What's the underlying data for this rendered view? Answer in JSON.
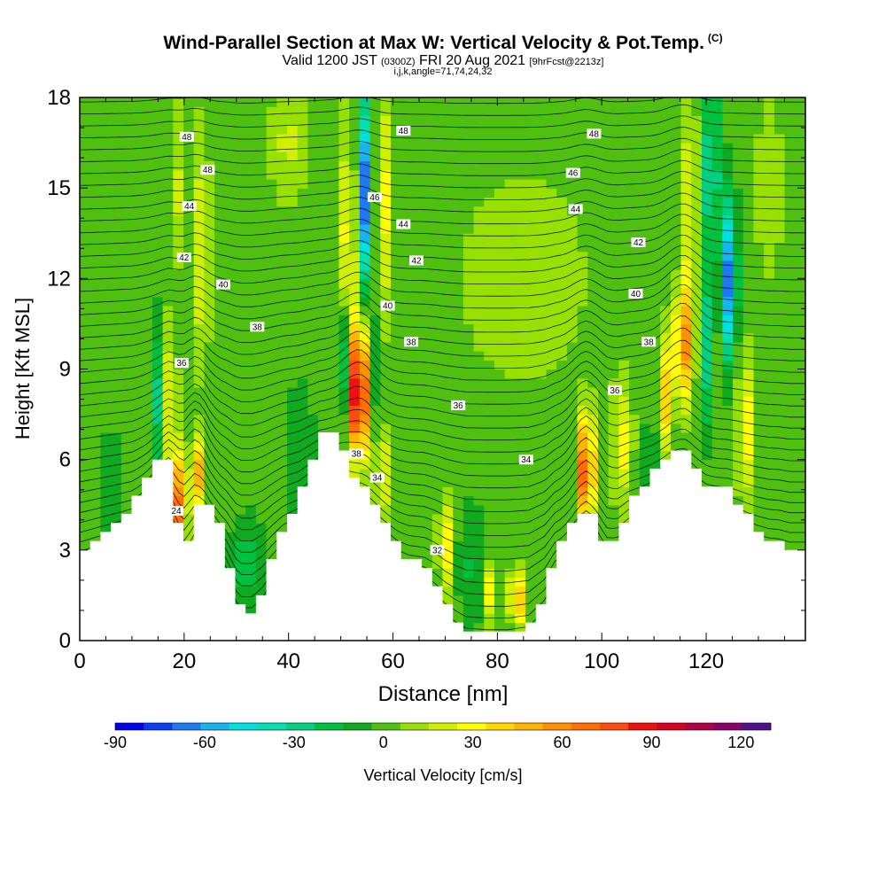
{
  "header": {
    "title_main": "Wind-Parallel Section at Max W: Vertical Velocity & Pot.Temp.",
    "title_copyright": "(C)",
    "valid_prefix": "Valid 1200 JST",
    "valid_z": "(0300Z)",
    "valid_date": "FRI 20 Aug 2021",
    "forecast_tag": "[9hrFcst@2213z]",
    "indices": "i,j,k,angle=71,74,24,32"
  },
  "chart_data": {
    "type": "heatmap",
    "xlabel": "Distance [nm]",
    "ylabel": "Height [Kft MSL]",
    "xlim": [
      0,
      139
    ],
    "ylim": [
      0,
      18
    ],
    "xticks": [
      0,
      20,
      40,
      60,
      80,
      100,
      120
    ],
    "yticks": [
      0,
      3,
      6,
      9,
      12,
      15,
      18
    ],
    "colorbar": {
      "label": "Vertical Velocity [cm/s]",
      "ticks": [
        -90,
        -60,
        -30,
        0,
        30,
        60,
        90,
        120
      ],
      "levels": [
        -90,
        -80,
        -70,
        -60,
        -50,
        -40,
        -30,
        -20,
        -10,
        0,
        10,
        20,
        30,
        40,
        50,
        60,
        70,
        80,
        90,
        100,
        110,
        120,
        130
      ],
      "colors": [
        "#0000f0",
        "#0a3cf0",
        "#1e78f0",
        "#18b4f0",
        "#00e0e0",
        "#00e0b0",
        "#00d080",
        "#00c040",
        "#10aa20",
        "#50c010",
        "#98e000",
        "#d0f000",
        "#ffff00",
        "#ffd800",
        "#ffb400",
        "#ff9000",
        "#ff6e00",
        "#ff4a10",
        "#f01010",
        "#d80020",
        "#b00048",
        "#880068",
        "#50108c"
      ]
    },
    "terrain_kft": [
      [
        0,
        3.0
      ],
      [
        2,
        3.3
      ],
      [
        4,
        3.6
      ],
      [
        6,
        3.9
      ],
      [
        8,
        4.2
      ],
      [
        10,
        4.5
      ],
      [
        12,
        5.2
      ],
      [
        14,
        5.8
      ],
      [
        16,
        6.1
      ],
      [
        17,
        6.0
      ],
      [
        18,
        4.8
      ],
      [
        19,
        3.6
      ],
      [
        20,
        3.0
      ],
      [
        21,
        3.5
      ],
      [
        22,
        4.2
      ],
      [
        24,
        4.6
      ],
      [
        26,
        4.2
      ],
      [
        28,
        3.2
      ],
      [
        30,
        1.4
      ],
      [
        31,
        1.0
      ],
      [
        33,
        1.0
      ],
      [
        35,
        1.7
      ],
      [
        37,
        2.8
      ],
      [
        39,
        3.8
      ],
      [
        42,
        4.6
      ],
      [
        44,
        5.7
      ],
      [
        46,
        6.8
      ],
      [
        48,
        7.0
      ],
      [
        50,
        6.7
      ],
      [
        51,
        6.2
      ],
      [
        52,
        5.6
      ],
      [
        53,
        5.2
      ],
      [
        55,
        5.0
      ],
      [
        57,
        4.5
      ],
      [
        59,
        3.8
      ],
      [
        61,
        3.1
      ],
      [
        63,
        2.7
      ],
      [
        66,
        2.5
      ],
      [
        68,
        2.0
      ],
      [
        70,
        1.3
      ],
      [
        72,
        0.8
      ],
      [
        74,
        0.4
      ],
      [
        78,
        0.3
      ],
      [
        82,
        0.3
      ],
      [
        86,
        0.5
      ],
      [
        89,
        1.5
      ],
      [
        91,
        2.9
      ],
      [
        93,
        3.4
      ],
      [
        95,
        4.0
      ],
      [
        97,
        4.5
      ],
      [
        99,
        4.0
      ],
      [
        101,
        3.1
      ],
      [
        103,
        3.4
      ],
      [
        105,
        4.4
      ],
      [
        107,
        4.9
      ],
      [
        109,
        5.4
      ],
      [
        111,
        5.9
      ],
      [
        113,
        6.3
      ],
      [
        116,
        6.3
      ],
      [
        118,
        5.6
      ],
      [
        120,
        5.1
      ],
      [
        124,
        5.0
      ],
      [
        126,
        4.6
      ],
      [
        128,
        4.1
      ],
      [
        130,
        3.7
      ],
      [
        132,
        3.4
      ],
      [
        134,
        3.3
      ],
      [
        136,
        3.0
      ],
      [
        139,
        3.0
      ]
    ],
    "features": [
      {
        "kind": "updraft",
        "x": 18.5,
        "z": 4.3,
        "sx": 1.8,
        "sz": 1.8,
        "w": 72
      },
      {
        "kind": "updraft",
        "x": 17.5,
        "z": 8.0,
        "sx": 1.3,
        "sz": 2.6,
        "w": 40
      },
      {
        "kind": "updraft",
        "x": 22.5,
        "z": 5.5,
        "sx": 1.2,
        "sz": 1.2,
        "w": 55
      },
      {
        "kind": "updraft",
        "x": 19.0,
        "z": 14.0,
        "sx": 1.2,
        "sz": 3.5,
        "w": 35
      },
      {
        "kind": "updraft",
        "x": 23.5,
        "z": 13.0,
        "sx": 1.3,
        "sz": 4.0,
        "w": 30
      },
      {
        "kind": "downdraft",
        "x": 15.5,
        "z": 8.0,
        "sx": 1.2,
        "sz": 2.5,
        "w": -35
      },
      {
        "kind": "downdraft",
        "x": 19.5,
        "z": 12.5,
        "sx": 1.0,
        "sz": 4.0,
        "w": -32
      },
      {
        "kind": "updraft",
        "x": 53.5,
        "z": 8.2,
        "sx": 1.6,
        "sz": 2.1,
        "w": 118
      },
      {
        "kind": "updraft",
        "x": 51.5,
        "z": 13.0,
        "sx": 1.4,
        "sz": 4.0,
        "w": 40
      },
      {
        "kind": "updraft",
        "x": 57.5,
        "z": 14.5,
        "sx": 1.8,
        "sz": 4.0,
        "w": 40
      },
      {
        "kind": "updraft",
        "x": 58.0,
        "z": 5.5,
        "sx": 1.5,
        "sz": 1.5,
        "w": 28
      },
      {
        "kind": "downdraft",
        "x": 55.0,
        "z": 14.8,
        "sx": 1.6,
        "sz": 3.0,
        "w": -80
      },
      {
        "kind": "downdraft",
        "x": 50.5,
        "z": 9.5,
        "sx": 1.0,
        "sz": 2.0,
        "w": -35
      },
      {
        "kind": "downdraft",
        "x": 57.0,
        "z": 9.5,
        "sx": 1.0,
        "sz": 2.0,
        "w": -25
      },
      {
        "kind": "updraft",
        "x": 97.0,
        "z": 5.6,
        "sx": 1.5,
        "sz": 1.8,
        "w": 85
      },
      {
        "kind": "updraft",
        "x": 104.0,
        "z": 6.5,
        "sx": 2.0,
        "sz": 2.0,
        "w": 30
      },
      {
        "kind": "updraft",
        "x": 115.5,
        "z": 9.8,
        "sx": 1.7,
        "sz": 1.9,
        "w": 62
      },
      {
        "kind": "updraft",
        "x": 117.0,
        "z": 14.0,
        "sx": 1.3,
        "sz": 4.0,
        "w": 35
      },
      {
        "kind": "updraft",
        "x": 127.5,
        "z": 7.0,
        "sx": 1.5,
        "sz": 2.5,
        "w": 35
      },
      {
        "kind": "updraft",
        "x": 112.0,
        "z": 8.0,
        "sx": 1.2,
        "sz": 2.0,
        "w": 45
      },
      {
        "kind": "downdraft",
        "x": 124.5,
        "z": 12.0,
        "sx": 1.3,
        "sz": 2.5,
        "w": -75
      },
      {
        "kind": "downdraft",
        "x": 121.0,
        "z": 15.5,
        "sx": 1.8,
        "sz": 3.5,
        "w": -35
      },
      {
        "kind": "downdraft",
        "x": 120.0,
        "z": 9.5,
        "sx": 1.0,
        "sz": 2.5,
        "w": -30
      },
      {
        "kind": "updraft",
        "x": 78.0,
        "z": 1.6,
        "sx": 0.9,
        "sz": 0.9,
        "w": 45
      },
      {
        "kind": "updraft",
        "x": 84.5,
        "z": 1.4,
        "sx": 0.9,
        "sz": 0.9,
        "w": 45
      },
      {
        "kind": "updraft",
        "x": 82.0,
        "z": 1.5,
        "sx": 0.8,
        "sz": 0.8,
        "w": 30
      },
      {
        "kind": "updraft",
        "x": 70.0,
        "z": 3.2,
        "sx": 1.2,
        "sz": 1.5,
        "w": 40
      },
      {
        "kind": "downdraft",
        "x": 32.0,
        "z": 2.5,
        "sx": 3.0,
        "sz": 1.5,
        "w": -20
      },
      {
        "kind": "downdraft",
        "x": 42.0,
        "z": 6.0,
        "sx": 3.0,
        "sz": 2.5,
        "w": -12
      },
      {
        "kind": "downdraft",
        "x": 75.0,
        "z": 2.5,
        "sx": 2.5,
        "sz": 2.0,
        "w": -15
      },
      {
        "kind": "downdraft",
        "x": 110.0,
        "z": 5.0,
        "sx": 3.0,
        "sz": 2.5,
        "w": -15
      },
      {
        "kind": "downdraft",
        "x": 6.0,
        "z": 5.0,
        "sx": 3.0,
        "sz": 2.5,
        "w": -8
      },
      {
        "kind": "updraft",
        "x": 85.0,
        "z": 12.0,
        "sx": 14.0,
        "sz": 4.0,
        "w": 12
      },
      {
        "kind": "updraft",
        "x": 40.0,
        "z": 16.5,
        "sx": 4.0,
        "sz": 2.0,
        "w": 18
      },
      {
        "kind": "updraft",
        "x": 132.0,
        "z": 15.0,
        "sx": 3.0,
        "sz": 3.5,
        "w": 12
      }
    ],
    "theta_contour_labels": [
      {
        "text": "48",
        "x": 20.5,
        "z": 16.7
      },
      {
        "text": "48",
        "x": 24.5,
        "z": 15.6
      },
      {
        "text": "44",
        "x": 21.0,
        "z": 14.4
      },
      {
        "text": "42",
        "x": 20.0,
        "z": 12.7
      },
      {
        "text": "40",
        "x": 27.5,
        "z": 11.8
      },
      {
        "text": "38",
        "x": 34.0,
        "z": 10.4
      },
      {
        "text": "36",
        "x": 19.5,
        "z": 9.2
      },
      {
        "text": "48",
        "x": 62.0,
        "z": 16.9
      },
      {
        "text": "46",
        "x": 56.5,
        "z": 14.7
      },
      {
        "text": "44",
        "x": 62.0,
        "z": 13.8
      },
      {
        "text": "42",
        "x": 64.5,
        "z": 12.6
      },
      {
        "text": "40",
        "x": 59.0,
        "z": 11.1
      },
      {
        "text": "38",
        "x": 63.5,
        "z": 9.9
      },
      {
        "text": "36",
        "x": 72.5,
        "z": 7.8
      },
      {
        "text": "38",
        "x": 53.0,
        "z": 6.2
      },
      {
        "text": "34",
        "x": 57.0,
        "z": 5.4
      },
      {
        "text": "34",
        "x": 85.5,
        "z": 6.0
      },
      {
        "text": "32",
        "x": 68.5,
        "z": 3.0
      },
      {
        "text": "24",
        "x": 18.5,
        "z": 4.3
      },
      {
        "text": "48",
        "x": 98.5,
        "z": 16.8
      },
      {
        "text": "46",
        "x": 94.5,
        "z": 15.5
      },
      {
        "text": "44",
        "x": 95.0,
        "z": 14.3
      },
      {
        "text": "42",
        "x": 107.0,
        "z": 13.2
      },
      {
        "text": "40",
        "x": 106.5,
        "z": 11.5
      },
      {
        "text": "38",
        "x": 109.0,
        "z": 9.9
      },
      {
        "text": "36",
        "x": 102.5,
        "z": 8.3
      }
    ]
  }
}
